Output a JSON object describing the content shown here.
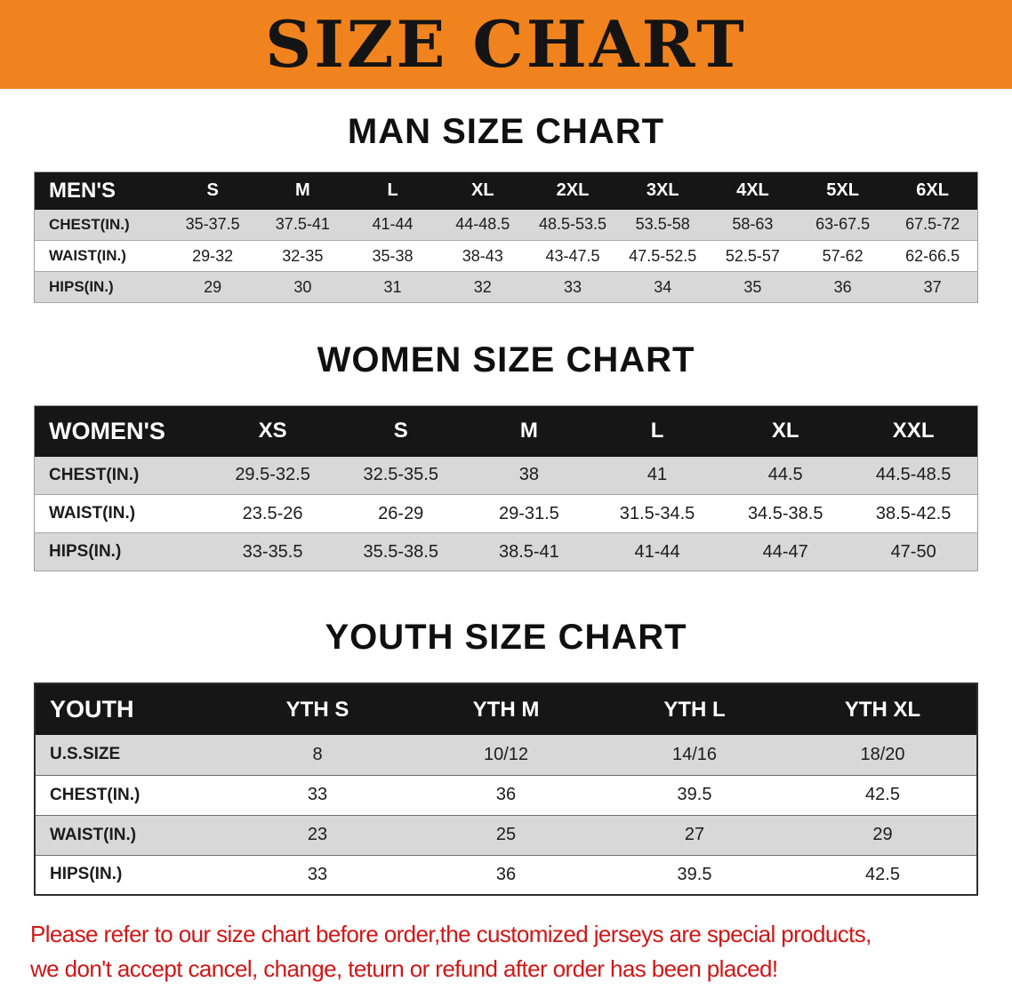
{
  "banner": {
    "title": "SIZE CHART"
  },
  "colors": {
    "banner-bg": "#f0831d",
    "banner-text": "#141414",
    "table-header-bg": "#161616",
    "table-header-text": "#ffffff",
    "row-stripe": "#d8d8d8",
    "disclaimer-text": "#cf1717"
  },
  "sections": [
    {
      "heading": "MAN SIZE CHART",
      "table": {
        "header": [
          "MEN'S",
          "S",
          "M",
          "L",
          "XL",
          "2XL",
          "3XL",
          "4XL",
          "5XL",
          "6XL"
        ],
        "rows": [
          [
            "CHEST(IN.)",
            "35-37.5",
            "37.5-41",
            "41-44",
            "44-48.5",
            "48.5-53.5",
            "53.5-58",
            "58-63",
            "63-67.5",
            "67.5-72"
          ],
          [
            "WAIST(IN.)",
            "29-32",
            "32-35",
            "35-38",
            "38-43",
            "43-47.5",
            "47.5-52.5",
            "52.5-57",
            "57-62",
            "62-66.5"
          ],
          [
            "HIPS(IN.)",
            "29",
            "30",
            "31",
            "32",
            "33",
            "34",
            "35",
            "36",
            "37"
          ]
        ]
      }
    },
    {
      "heading": "WOMEN SIZE CHART",
      "table": {
        "header": [
          "WOMEN'S",
          "XS",
          "S",
          "M",
          "L",
          "XL",
          "XXL"
        ],
        "rows": [
          [
            "CHEST(IN.)",
            "29.5-32.5",
            "32.5-35.5",
            "38",
            "41",
            "44.5",
            "44.5-48.5"
          ],
          [
            "WAIST(IN.)",
            "23.5-26",
            "26-29",
            "29-31.5",
            "31.5-34.5",
            "34.5-38.5",
            "38.5-42.5"
          ],
          [
            "HIPS(IN.)",
            "33-35.5",
            "35.5-38.5",
            "38.5-41",
            "41-44",
            "44-47",
            "47-50"
          ]
        ]
      }
    },
    {
      "heading": "YOUTH SIZE CHART",
      "table": {
        "header": [
          "YOUTH",
          "YTH S",
          "YTH M",
          "YTH L",
          "YTH XL"
        ],
        "rows": [
          [
            "U.S.SIZE",
            "8",
            "10/12",
            "14/16",
            "18/20"
          ],
          [
            "CHEST(IN.)",
            "33",
            "36",
            "39.5",
            "42.5"
          ],
          [
            "WAIST(IN.)",
            "23",
            "25",
            "27",
            "29"
          ],
          [
            "HIPS(IN.)",
            "33",
            "36",
            "39.5",
            "42.5"
          ]
        ]
      }
    }
  ],
  "disclaimer": {
    "line1": "Please refer to our size chart before order,the customized jerseys are special products,",
    "line2": "we don't accept cancel, change, teturn or refund after order has been placed!"
  }
}
